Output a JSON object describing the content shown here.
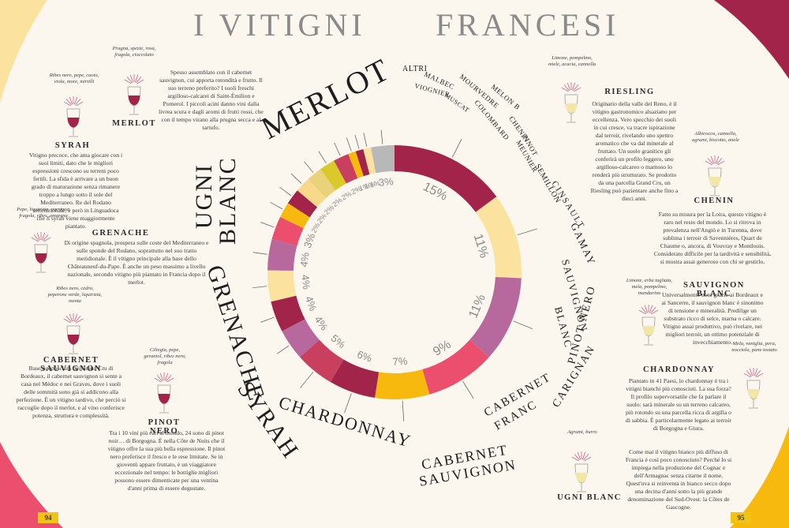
{
  "title": {
    "left": "I VITIGNI",
    "right": "FRANCESI"
  },
  "pages": {
    "left": "94",
    "right": "95"
  },
  "colors": {
    "merlot": "#a3244a",
    "ugni_blanc": "#fbe39f",
    "grenache": "#b7699d",
    "syrah": "#ec4f6e",
    "chardonnay": "#f7b90e",
    "cab_sauv": "#a3244a",
    "cab_franc": "#c8405e",
    "carignan": "#b7699d",
    "pinot_noir": "#a3244a",
    "sauv_blanc": "#fbe39f",
    "gamay": "#b7699d",
    "cinsault": "#ec4f6e",
    "semillon": "#f7b90e",
    "pinot_meunier": "#a3244a",
    "chenin": "#f8d98a",
    "colombard": "#e9d27a",
    "melon_b": "#d9c92a",
    "mourvedre": "#c8405e",
    "muscat": "#f7b90e",
    "malbec": "#a3244a",
    "viognier": "#fbe39f",
    "altri": "#b8b8b8"
  },
  "chart_data": {
    "type": "pie",
    "donut": true,
    "categories": [
      "MERLOT",
      "UGNI BLANC",
      "GRENACHE",
      "SYRAH",
      "CHARDONNAY",
      "CABERNET SAUVIGNON",
      "CABERNET FRANC",
      "CARIGNAN",
      "PINOT NERO",
      "SAUVIGNON BLANC",
      "GAMAY",
      "CINSAULT",
      "SEMILLON",
      "PINOT MEUNIER",
      "CHENIN",
      "COLOMBARD",
      "MELON B",
      "MOURVÈDRE",
      "MUSCAT",
      "MALBEC",
      "VIOGNIER",
      "ALTRI"
    ],
    "values": [
      15,
      11,
      11,
      9,
      7,
      6,
      5,
      4,
      4,
      4,
      4,
      3,
      2,
      2,
      2,
      2,
      2,
      2,
      1,
      1,
      1,
      3
    ],
    "labels": [
      "15%",
      "11%",
      "11%",
      "9%",
      "7%",
      "6%",
      "5%",
      "4%",
      "4%",
      "4%",
      "4%",
      "3%",
      "2%",
      "2%",
      "2%",
      "2%",
      "2%",
      "2%",
      "1%",
      "1%",
      "1%",
      "3%"
    ],
    "display_names": [
      "MERLOT",
      "UGNI BLANC",
      "GRENACHE",
      "SYRAH",
      "CHARDONNAY",
      "CABERNET SAUVIGNON",
      "CABERNET FRANC",
      "CARIGNAN",
      "PINOT NERO",
      "SAUVIGNON BLANC",
      "GAMAY",
      "CINSAULT",
      "SEMILLON",
      "PINOT MEUNIER",
      "CHENIN",
      "COLOMBARD",
      "MELON B",
      "MOURVEDRE",
      "MUSCAT petits grains",
      "MALBEC",
      "VIOGNIER",
      "ALTRI"
    ]
  },
  "varieties": {
    "merlot": {
      "name": "MERLOT",
      "aromas": "Prugna, spezie, rosa, fragola, cioccolato",
      "desc": "Spesso assemblato con il cabernet sauvignon, cui apporta rotondità e frutto. Il suo terreno preferito? I suoli freschi argilloso-calcarei di Saint-Émilion e Pomerol. I piccoli acini danno vini dalla livrea scura e dagli aromi di frutti rossi, che con il tempo virano alla prugna secca e al tartufo."
    },
    "syrah": {
      "name": "SYRAH",
      "aromas": "Ribes nero, pepe, cuoio, viola, more, mirtilli",
      "desc": "Vitigno precoce, che ama giocare con i suoi limiti, dato che le migliori espressioni crescono su terreni poco fertili. La sfida è arrivare a un buon grado di maturazione senza rimanere troppo a lungo sotto il sole del Mediterraneo. Re del Rodano settentrionale, è però in Linguadoca che il syrah viene maggiormente piantato."
    },
    "grenache": {
      "name": "GRENACHE",
      "aromas": "Pepe, liquirizia, garrigue, fragola, ribes, amarena",
      "desc": "Di origine spagnola, prospera sulle coste del Mediterraneo e sulle sponde del Rodano, soprattutto nel suo tratto meridionale. È il vitigno principale alla base dello Châteauneuf-du-Pape. È anche un peso massimo a livello nazionale, secondo vitigno più piantato in Francia dopo il merlot."
    },
    "cab_sauv": {
      "name": "CABERNET SAUVIGNON",
      "aromas": "Ribes nero, cedro, peperone verde, liquirizia, menta",
      "desc": "Base riconosciuta dei Grand Cru di Bordeaux, il cabernet sauvignon si sente a casa nel Médoc e nei Graves, dove i suoli delle sommità sono già si addicono alla perfezione. È un vitigno tardivo, che perciò si raccoglie dopo il merlot, e al vino conferisce potenza, struttura e complessità."
    },
    "pinot_noir": {
      "name": "PINOT NERO",
      "aromas": "Ciliegia, pepe, geraniol, ribes nero, fragola",
      "desc": "Tra i 10 vini più cari al mondo, 24 sono di pinot noir… di Borgogna. È nella Côte de Nuits che il vitigno offre la sua più bella espressione. Il pinot nero preferisce il fresco e le rese limitate. Se in gioventù appare fruttato, è un viaggiatore eccezionale nel tempo: le bottiglie migliori possono essere dimenticate per una ventina d'anni prima di essere degustate."
    },
    "riesling": {
      "name": "RIESLING",
      "aromas": "Limone, pompelmo, miele, acacia, cannella",
      "desc": "Originario della valle del Reno, è il vitigno gastronomico alsaziano per eccellenza. Vero specchio dei suoli in cui cresce, va tracre ispirazione dal terroir, rivelando uno spettro aromatico che va dal minerale al fruttato. Un suolo granitico gli conferirà un profilo leggero, uno argilloso-calcareo o marnoso lo renderà più strutturato. Se prodotto da una parcella Grand Cru, un Riesling può pazientare anche fino a dieci anni."
    },
    "chenin": {
      "name": "CHENIN",
      "aromas": "Albicocca, cannella, agrumi, biscotto, miele",
      "desc": "Fatto su misura per la Loira, questo vitigno è raro nel resto del mondo. Lo si ritrova in prevalenza nell'Angiò e in Turenna, dove sublima i terroir di Savennières, Quart de Chaume o, ancora, di Vouvray e Montlouis. Considerato difficile per la tardività e sensibilità, si mostra assai generoso con chi se gestirlo."
    },
    "sauv_blanc": {
      "name": "SAUVIGNON BLANC",
      "aromas": "Limone, erba tagliata, mela, pompelmo, mandarino",
      "desc": "Universalmente noto grazie ai Bordeaux e ai Sancerre, il sauvignon blanc è sinonimo di tensione e mineralità. Predilige un substrato ricco di selce, marna o calcare. Vitigno assai produttivo, può rivelare, nei migliori terroir, un ottimo potenziale di invecchiamento."
    },
    "chardonnay": {
      "name": "CHARDONNAY",
      "aromas": "Mela, vaniglia, pera, nocciola, pane tostato",
      "desc": "Piantato in 41 Paesi, lo chardonnay è tra i vitigni bianchi più conosciuti. La sua forza? Il profilo supervorsatile che fa parlare il suolo: sarà minerale su un terreno calcareo, più rotondo su una parcella ricca di argilla o di sabbia. È particolarmente legato ai terroir di Borgogna e Giura."
    },
    "ugni_blanc": {
      "name": "UGNI BLANC",
      "aromas": "Agrumi, burro",
      "desc": "Come mai il vitigno bianco più diffuso di Francia è così poco conosciuto? Perché lo si impiega nella produzione del Cognac e dell'Armagnac senza citarne il nome. Quest'uva si reinventa in bianco secco dopo una decina d'anni sotto la più grande denominazione del Sud-Ovest: la Côtes de Gascogne."
    }
  }
}
